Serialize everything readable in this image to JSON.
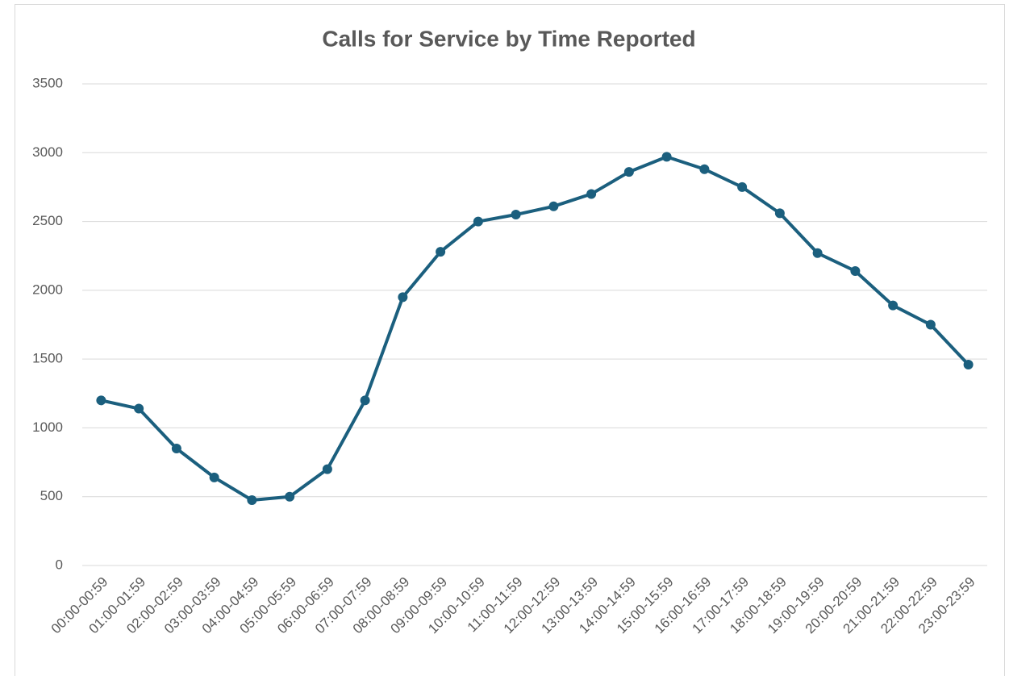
{
  "chart_data": {
    "type": "line",
    "title": "Calls for Service by Time Reported",
    "categories": [
      "00:00-00:59",
      "01:00-01:59",
      "02:00-02:59",
      "03:00-03:59",
      "04:00-04:59",
      "05:00-05:59",
      "06:00-06:59",
      "07:00-07:59",
      "08:00-08:59",
      "09:00-09:59",
      "10:00-10:59",
      "11:00-11:59",
      "12:00-12:59",
      "13:00-13:59",
      "14:00-14:59",
      "15:00-15:59",
      "16:00-16:59",
      "17:00-17:59",
      "18:00-18:59",
      "19:00-19:59",
      "20:00-20:59",
      "21:00-21:59",
      "22:00-22:59",
      "23:00-23:59"
    ],
    "series": [
      {
        "name": "Calls",
        "color": "#1b5f7e",
        "values": [
          1200,
          1140,
          850,
          640,
          475,
          500,
          700,
          1200,
          1950,
          2280,
          2500,
          2550,
          2610,
          2700,
          2860,
          2970,
          2880,
          2750,
          2560,
          2270,
          2140,
          1890,
          1750,
          1460
        ]
      }
    ],
    "ylim": [
      0,
      3500
    ],
    "yticks": [
      0,
      500,
      1000,
      1500,
      2000,
      2500,
      3000,
      3500
    ],
    "grid": true
  }
}
